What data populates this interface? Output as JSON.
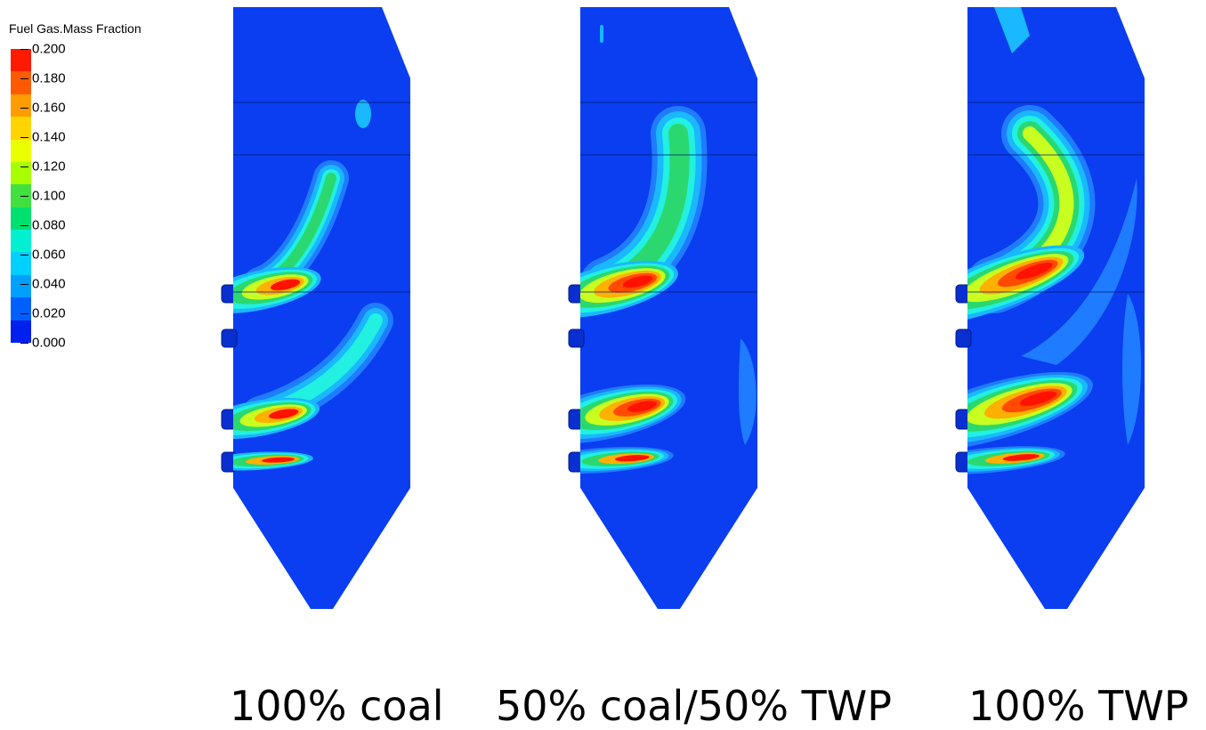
{
  "legend": {
    "title": "Fuel Gas.Mass Fraction",
    "ticks": [
      "0.200",
      "0.180",
      "0.160",
      "0.140",
      "0.120",
      "0.100",
      "0.080",
      "0.060",
      "0.040",
      "0.020",
      "0.000"
    ],
    "colors": [
      "#ff1a00",
      "#ff5a00",
      "#ff9c00",
      "#ffd400",
      "#eaff00",
      "#a8ff00",
      "#40e040",
      "#00e070",
      "#00f0d0",
      "#00d0ff",
      "#00a0ff",
      "#0060ff",
      "#0020f0"
    ]
  },
  "panels": [
    {
      "caption": "100% coal",
      "variant": "coal"
    },
    {
      "caption": "50% coal/50% TWP",
      "variant": "mix"
    },
    {
      "caption": "100% TWP",
      "variant": "twp"
    }
  ],
  "colors": {
    "background_field": "#0a3ef0",
    "level_1": "#1f7bff",
    "level_2": "#19b8ff",
    "level_3": "#22f0e0",
    "level_4": "#2bd870",
    "level_5": "#c8ff20",
    "level_6": "#ffb000",
    "level_7": "#ff4a00",
    "level_8": "#ff1200"
  }
}
